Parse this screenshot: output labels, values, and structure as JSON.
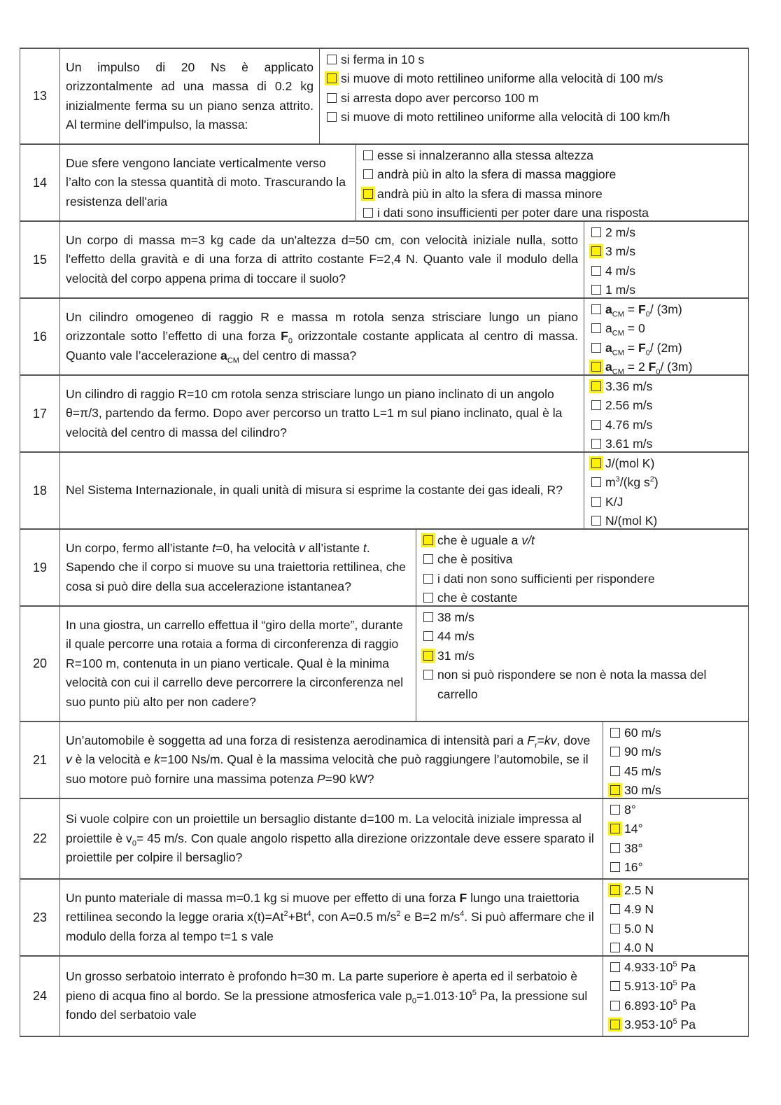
{
  "highlight_color": "#fff200",
  "rows": [
    {
      "number": "13",
      "question": [
        [
          "",
          "Un impulso di 20 Ns è applicato orizzontalmente ad una massa di 0.2 kg inizialmente ferma su un piano senza attrito. Al termine dell'impulso, la massa:"
        ]
      ],
      "options": [
        {
          "text": [
            [
              "",
              "si ferma in 10 s"
            ]
          ],
          "selected": false
        },
        {
          "text": [
            [
              "",
              "si muove di moto rettilineo uniforme alla velocità di 100 m/s"
            ]
          ],
          "selected": true
        },
        {
          "text": [
            [
              "",
              "si arresta dopo aver percorso 100 m"
            ]
          ],
          "selected": false
        },
        {
          "text": [
            [
              "",
              "si muove di moto rettilineo uniforme alla velocità di 100 km/h"
            ]
          ],
          "selected": false
        }
      ]
    },
    {
      "number": "14",
      "question": [
        [
          "",
          "Due sfere vengono lanciate verticalmente verso l’alto con la stessa quantità di moto. Trascurando la resistenza dell'aria"
        ]
      ],
      "options": [
        {
          "text": [
            [
              "",
              "esse si innalzeranno alla stessa altezza"
            ]
          ],
          "selected": false
        },
        {
          "text": [
            [
              "",
              "andrà più in alto la sfera di massa maggiore"
            ]
          ],
          "selected": false
        },
        {
          "text": [
            [
              "",
              "andrà più in alto la sfera di massa minore"
            ]
          ],
          "selected": true
        },
        {
          "text": [
            [
              "",
              "i dati sono insufficienti per poter dare una risposta"
            ]
          ],
          "selected": false
        }
      ]
    },
    {
      "number": "15",
      "question": [
        [
          "",
          "Un corpo di massa m=3 kg cade da un'altezza d=50 cm, con velocità iniziale nulla, sotto l'effetto della gravità e di una forza di attrito costante F=2,4 N. Quanto vale il modulo della velocità del corpo appena prima di toccare il suolo?"
        ]
      ],
      "options": [
        {
          "text": [
            [
              "",
              "2 m/s"
            ]
          ],
          "selected": false
        },
        {
          "text": [
            [
              "",
              "3 m/s"
            ]
          ],
          "selected": true
        },
        {
          "text": [
            [
              "",
              "4 m/s"
            ]
          ],
          "selected": false
        },
        {
          "text": [
            [
              "",
              "1 m/s"
            ]
          ],
          "selected": false
        }
      ]
    },
    {
      "number": "16",
      "question": [
        [
          "",
          "Un cilindro omogeneo di raggio R e massa m rotola senza strisciare lungo un piano orizzontale sotto l’effetto di una forza "
        ],
        [
          "b",
          "F"
        ],
        [
          "sub",
          "0"
        ],
        [
          "",
          " orizzontale costante applicata al centro di massa. Quanto vale l’accelerazione "
        ],
        [
          "b",
          "a"
        ],
        [
          "sub",
          "CM"
        ],
        [
          "",
          " del centro di massa?"
        ]
      ],
      "options": [
        {
          "text": [
            [
              "b",
              "a"
            ],
            [
              "sub",
              "CM"
            ],
            [
              "",
              " = "
            ],
            [
              "b",
              "F"
            ],
            [
              "sub",
              "0"
            ],
            [
              "",
              "/ (3m)"
            ]
          ],
          "selected": false
        },
        {
          "text": [
            [
              "",
              "a"
            ],
            [
              "sub",
              "CM"
            ],
            [
              "",
              " =  0"
            ]
          ],
          "selected": false
        },
        {
          "text": [
            [
              "b",
              "a"
            ],
            [
              "sub",
              "CM"
            ],
            [
              "",
              " = "
            ],
            [
              "b",
              "F"
            ],
            [
              "sub",
              "0"
            ],
            [
              "",
              "/ (2m)"
            ]
          ],
          "selected": false
        },
        {
          "text": [
            [
              "b",
              "a"
            ],
            [
              "sub",
              "CM"
            ],
            [
              "",
              " = 2 "
            ],
            [
              "b",
              "F"
            ],
            [
              "sub",
              "0"
            ],
            [
              "",
              "/ (3m)"
            ]
          ],
          "selected": true
        }
      ]
    },
    {
      "number": "17",
      "question": [
        [
          "",
          "Un cilindro di raggio R=10 cm rotola senza strisciare lungo un piano inclinato di un angolo θ=π/3, partendo da fermo. Dopo aver percorso un tratto L=1 m sul piano inclinato, qual è la velocità del centro di massa del cilindro?"
        ]
      ],
      "options": [
        {
          "text": [
            [
              "",
              "3.36 m/s"
            ]
          ],
          "selected": true
        },
        {
          "text": [
            [
              "",
              "2.56 m/s"
            ]
          ],
          "selected": false
        },
        {
          "text": [
            [
              "",
              "4.76 m/s"
            ]
          ],
          "selected": false
        },
        {
          "text": [
            [
              "",
              "3.61 m/s"
            ]
          ],
          "selected": false
        }
      ]
    },
    {
      "number": "18",
      "question": [
        [
          "",
          "Nel Sistema Internazionale, in quali unità di misura si esprime la costante dei gas ideali, R?"
        ]
      ],
      "options": [
        {
          "text": [
            [
              "",
              "J/(mol K)"
            ]
          ],
          "selected": true
        },
        {
          "text": [
            [
              "",
              "m"
            ],
            [
              "sup",
              "3"
            ],
            [
              "",
              "/(kg s"
            ],
            [
              "sup",
              "2"
            ],
            [
              "",
              ")"
            ]
          ],
          "selected": false
        },
        {
          "text": [
            [
              "",
              "K/J"
            ]
          ],
          "selected": false
        },
        {
          "text": [
            [
              "",
              "N/(mol K)"
            ]
          ],
          "selected": false
        }
      ]
    },
    {
      "number": "19",
      "question": [
        [
          "",
          "Un corpo, fermo all’istante "
        ],
        [
          "i",
          "t"
        ],
        [
          "",
          "=0, ha velocità "
        ],
        [
          "i",
          "v"
        ],
        [
          "",
          " all’istante "
        ],
        [
          "i",
          "t"
        ],
        [
          "",
          ". Sapendo che il corpo si muove su una traiettoria rettilinea, che cosa si può dire della sua accelerazione istantanea?"
        ]
      ],
      "options": [
        {
          "text": [
            [
              "",
              "che è uguale a "
            ],
            [
              "i",
              "v/t"
            ]
          ],
          "selected": true
        },
        {
          "text": [
            [
              "",
              "che è positiva"
            ]
          ],
          "selected": false
        },
        {
          "text": [
            [
              "",
              "i dati non sono sufficienti per rispondere"
            ]
          ],
          "selected": false
        },
        {
          "text": [
            [
              "",
              "che è costante"
            ]
          ],
          "selected": false
        }
      ]
    },
    {
      "number": "20",
      "question": [
        [
          "",
          "In una giostra, un carrello effettua il “giro della morte”, durante il quale percorre una rotaia a forma di circonferenza di raggio R=100 m, contenuta in un piano verticale. Qual è la minima velocità con cui il carrello deve percorrere la circonferenza nel suo punto più alto per non cadere?"
        ]
      ],
      "options": [
        {
          "text": [
            [
              "",
              "38 m/s"
            ]
          ],
          "selected": false
        },
        {
          "text": [
            [
              "",
              "44 m/s"
            ]
          ],
          "selected": false
        },
        {
          "text": [
            [
              "",
              "31 m/s"
            ]
          ],
          "selected": true
        },
        {
          "text": [
            [
              "",
              "non si può rispondere se non è nota la massa del carrello"
            ]
          ],
          "selected": false
        }
      ]
    },
    {
      "number": "21",
      "question": [
        [
          "",
          "Un’automobile è soggetta ad una forza di resistenza aerodinamica di intensità pari a "
        ],
        [
          "i",
          "F"
        ],
        [
          "sub",
          "r"
        ],
        [
          "",
          "="
        ],
        [
          "i",
          "kv"
        ],
        [
          "",
          ", dove "
        ],
        [
          "i",
          "v"
        ],
        [
          "",
          " è la velocità e "
        ],
        [
          "i",
          "k"
        ],
        [
          "",
          "=100 Ns/m. Qual è la massima velocità che può raggiungere l’automobile, se il suo motore può fornire una massima potenza "
        ],
        [
          "i",
          "P"
        ],
        [
          "",
          "=90 kW?"
        ]
      ],
      "options": [
        {
          "text": [
            [
              "",
              "60 m/s"
            ]
          ],
          "selected": false
        },
        {
          "text": [
            [
              "",
              "90 m/s"
            ]
          ],
          "selected": false
        },
        {
          "text": [
            [
              "",
              "45 m/s"
            ]
          ],
          "selected": false
        },
        {
          "text": [
            [
              "",
              "30 m/s"
            ]
          ],
          "selected": true
        }
      ]
    },
    {
      "number": "22",
      "question": [
        [
          "",
          "Si vuole colpire con un proiettile un bersaglio distante d=100 m. La velocità iniziale impressa al proiettile è v"
        ],
        [
          "sub",
          "0"
        ],
        [
          "",
          "= 45 m/s. Con quale angolo rispetto alla direzione orizzontale deve essere sparato il proiettile per colpire il bersaglio?"
        ]
      ],
      "options": [
        {
          "text": [
            [
              "",
              "8°"
            ]
          ],
          "selected": false
        },
        {
          "text": [
            [
              "",
              "14°"
            ]
          ],
          "selected": true
        },
        {
          "text": [
            [
              "",
              "38°"
            ]
          ],
          "selected": false
        },
        {
          "text": [
            [
              "",
              "16°"
            ]
          ],
          "selected": false
        }
      ]
    },
    {
      "number": "23",
      "question": [
        [
          "",
          "Un punto materiale di massa m=0.1 kg si muove per effetto di una forza "
        ],
        [
          "b",
          "F"
        ],
        [
          "",
          " lungo una traiettoria rettilinea secondo la legge oraria x(t)=At"
        ],
        [
          "sup",
          "2"
        ],
        [
          "",
          "+Bt"
        ],
        [
          "sup",
          "4"
        ],
        [
          "",
          ", con A=0.5 m/s"
        ],
        [
          "sup",
          "2"
        ],
        [
          "",
          " e B=2 m/s"
        ],
        [
          "sup",
          "4"
        ],
        [
          "",
          ". Si può affermare che il modulo della forza al tempo t=1 s vale"
        ]
      ],
      "options": [
        {
          "text": [
            [
              "",
              "2.5 N"
            ]
          ],
          "selected": true
        },
        {
          "text": [
            [
              "",
              "4.9 N"
            ]
          ],
          "selected": false
        },
        {
          "text": [
            [
              "",
              "5.0 N"
            ]
          ],
          "selected": false
        },
        {
          "text": [
            [
              "",
              "4.0 N"
            ]
          ],
          "selected": false
        }
      ]
    },
    {
      "number": "24",
      "question": [
        [
          "",
          "Un grosso serbatoio interrato è profondo h=30 m. La parte superiore è aperta ed il serbatoio è pieno di acqua fino al bordo. Se la pressione atmosferica vale p"
        ],
        [
          "sub",
          "0"
        ],
        [
          "",
          "=1.013·10"
        ],
        [
          "sup",
          "5"
        ],
        [
          "",
          " Pa, la pressione sul fondo del serbatoio vale"
        ]
      ],
      "options": [
        {
          "text": [
            [
              "",
              "4.933·10"
            ],
            [
              "sup",
              "5"
            ],
            [
              "",
              " Pa"
            ]
          ],
          "selected": false
        },
        {
          "text": [
            [
              "",
              "5.913·10"
            ],
            [
              "sup",
              "5"
            ],
            [
              "",
              " Pa"
            ]
          ],
          "selected": false
        },
        {
          "text": [
            [
              "",
              "6.893·10"
            ],
            [
              "sup",
              "5"
            ],
            [
              "",
              " Pa"
            ]
          ],
          "selected": false
        },
        {
          "text": [
            [
              "",
              "3.953·10"
            ],
            [
              "sup",
              "5"
            ],
            [
              "",
              " Pa"
            ]
          ],
          "selected": true
        }
      ]
    }
  ]
}
